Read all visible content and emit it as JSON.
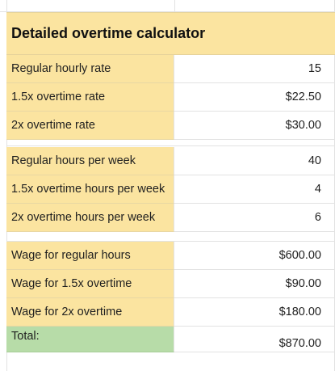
{
  "title": "Detailed overtime calculator",
  "rows": [
    {
      "label": "Regular hourly rate",
      "value": "15"
    },
    {
      "label": "1.5x overtime rate",
      "value": "$22.50"
    },
    {
      "label": "2x overtime rate",
      "value": "$30.00"
    },
    {
      "label": "Regular hours per week",
      "value": "40"
    },
    {
      "label": "1.5x overtime hours per week",
      "value": "4"
    },
    {
      "label": "2x overtime hours per week",
      "value": "6"
    },
    {
      "label": "Wage for regular hours",
      "value": "$600.00"
    },
    {
      "label": "Wage for 1.5x overtime",
      "value": "$90.00"
    },
    {
      "label": "Wage for 2x overtime",
      "value": "$180.00"
    },
    {
      "label": "Total:",
      "value": "$870.00"
    }
  ],
  "colors": {
    "label_fill": "#fbe4a0",
    "total_fill": "#b7dca8"
  }
}
